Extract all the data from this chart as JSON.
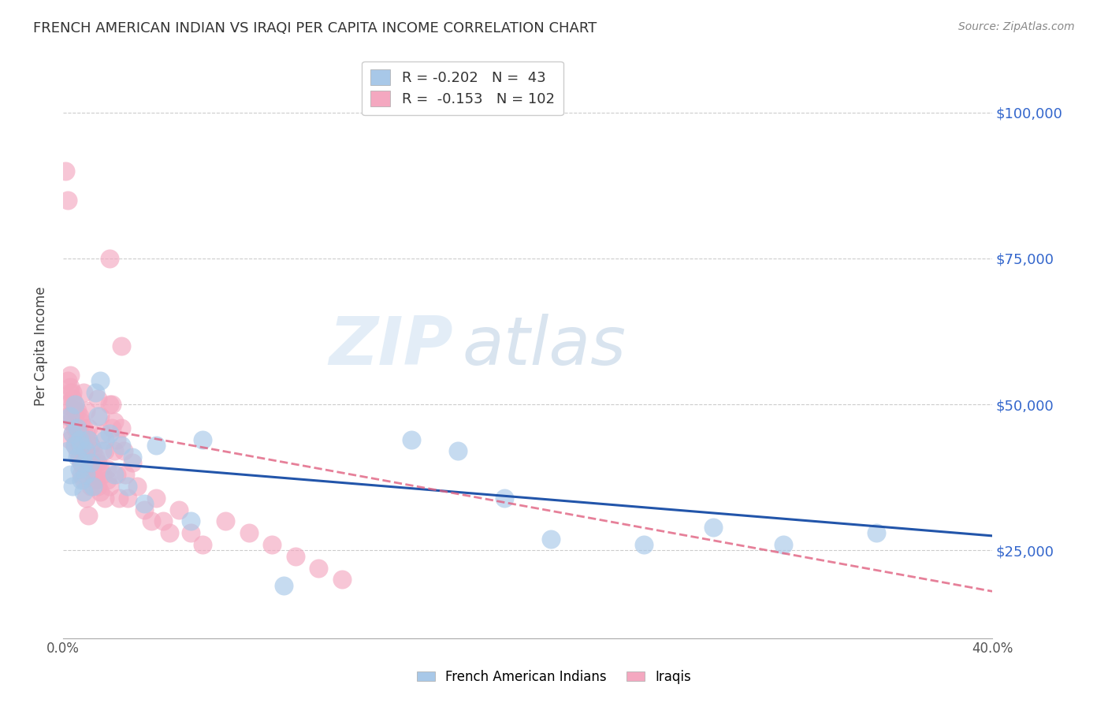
{
  "title": "FRENCH AMERICAN INDIAN VS IRAQI PER CAPITA INCOME CORRELATION CHART",
  "source": "Source: ZipAtlas.com",
  "ylabel": "Per Capita Income",
  "ytick_labels": [
    "$25,000",
    "$50,000",
    "$75,000",
    "$100,000"
  ],
  "ytick_values": [
    25000,
    50000,
    75000,
    100000
  ],
  "xlim": [
    0.0,
    0.4
  ],
  "ylim": [
    10000,
    110000
  ],
  "watermark_zip": "ZIP",
  "watermark_atlas": "atlas",
  "legend_blue_r": "-0.202",
  "legend_blue_n": "43",
  "legend_pink_r": "-0.153",
  "legend_pink_n": "102",
  "legend_label_blue": "French American Indians",
  "legend_label_pink": "Iraqis",
  "blue_color": "#a8c8e8",
  "pink_color": "#f4a8c0",
  "blue_line_color": "#2255aa",
  "pink_line_color": "#e06080",
  "blue_scatter_x": [
    0.002,
    0.003,
    0.003,
    0.004,
    0.004,
    0.005,
    0.005,
    0.006,
    0.006,
    0.007,
    0.007,
    0.008,
    0.008,
    0.009,
    0.009,
    0.01,
    0.01,
    0.011,
    0.012,
    0.013,
    0.014,
    0.015,
    0.016,
    0.017,
    0.018,
    0.02,
    0.022,
    0.025,
    0.028,
    0.03,
    0.035,
    0.04,
    0.055,
    0.06,
    0.15,
    0.17,
    0.19,
    0.21,
    0.25,
    0.28,
    0.31,
    0.35,
    0.095
  ],
  "blue_scatter_y": [
    42000,
    48000,
    38000,
    45000,
    36000,
    43000,
    50000,
    41000,
    46000,
    39000,
    44000,
    37000,
    43000,
    40000,
    35000,
    42000,
    38000,
    44000,
    40000,
    36000,
    52000,
    48000,
    54000,
    42000,
    44000,
    45000,
    38000,
    43000,
    36000,
    41000,
    33000,
    43000,
    30000,
    44000,
    44000,
    42000,
    34000,
    27000,
    26000,
    29000,
    26000,
    28000,
    19000
  ],
  "pink_scatter_x": [
    0.001,
    0.002,
    0.002,
    0.003,
    0.003,
    0.003,
    0.004,
    0.004,
    0.004,
    0.005,
    0.005,
    0.005,
    0.006,
    0.006,
    0.006,
    0.007,
    0.007,
    0.007,
    0.008,
    0.008,
    0.008,
    0.009,
    0.009,
    0.009,
    0.01,
    0.01,
    0.01,
    0.011,
    0.011,
    0.012,
    0.012,
    0.012,
    0.013,
    0.013,
    0.014,
    0.014,
    0.015,
    0.015,
    0.016,
    0.016,
    0.017,
    0.018,
    0.019,
    0.02,
    0.021,
    0.022,
    0.023,
    0.024,
    0.025,
    0.026,
    0.027,
    0.028,
    0.03,
    0.032,
    0.035,
    0.038,
    0.04,
    0.043,
    0.046,
    0.05,
    0.055,
    0.06,
    0.07,
    0.08,
    0.09,
    0.1,
    0.11,
    0.12,
    0.003,
    0.004,
    0.005,
    0.006,
    0.007,
    0.008,
    0.009,
    0.01,
    0.011,
    0.012,
    0.013,
    0.014,
    0.015,
    0.016,
    0.017,
    0.018,
    0.019,
    0.02,
    0.021,
    0.022,
    0.023,
    0.003,
    0.004,
    0.005,
    0.006,
    0.007,
    0.008,
    0.009,
    0.01,
    0.011,
    0.001,
    0.002,
    0.02,
    0.025
  ],
  "pink_scatter_y": [
    50000,
    54000,
    48000,
    52000,
    47000,
    44000,
    51000,
    48000,
    45000,
    50000,
    46000,
    43000,
    49000,
    46000,
    42000,
    48000,
    45000,
    41000,
    47000,
    44000,
    40000,
    46000,
    43000,
    39000,
    45000,
    42000,
    38000,
    44000,
    40000,
    43000,
    39000,
    36000,
    42000,
    38000,
    41000,
    37000,
    40000,
    36000,
    39000,
    35000,
    38000,
    34000,
    37000,
    50000,
    46000,
    42000,
    38000,
    34000,
    46000,
    42000,
    38000,
    34000,
    40000,
    36000,
    32000,
    30000,
    34000,
    30000,
    28000,
    32000,
    28000,
    26000,
    30000,
    28000,
    26000,
    24000,
    22000,
    20000,
    53000,
    50000,
    47000,
    44000,
    41000,
    38000,
    52000,
    49000,
    46000,
    43000,
    40000,
    37000,
    51000,
    48000,
    45000,
    42000,
    39000,
    36000,
    50000,
    47000,
    44000,
    55000,
    52000,
    49000,
    46000,
    43000,
    40000,
    37000,
    34000,
    31000,
    90000,
    85000,
    75000,
    60000
  ]
}
